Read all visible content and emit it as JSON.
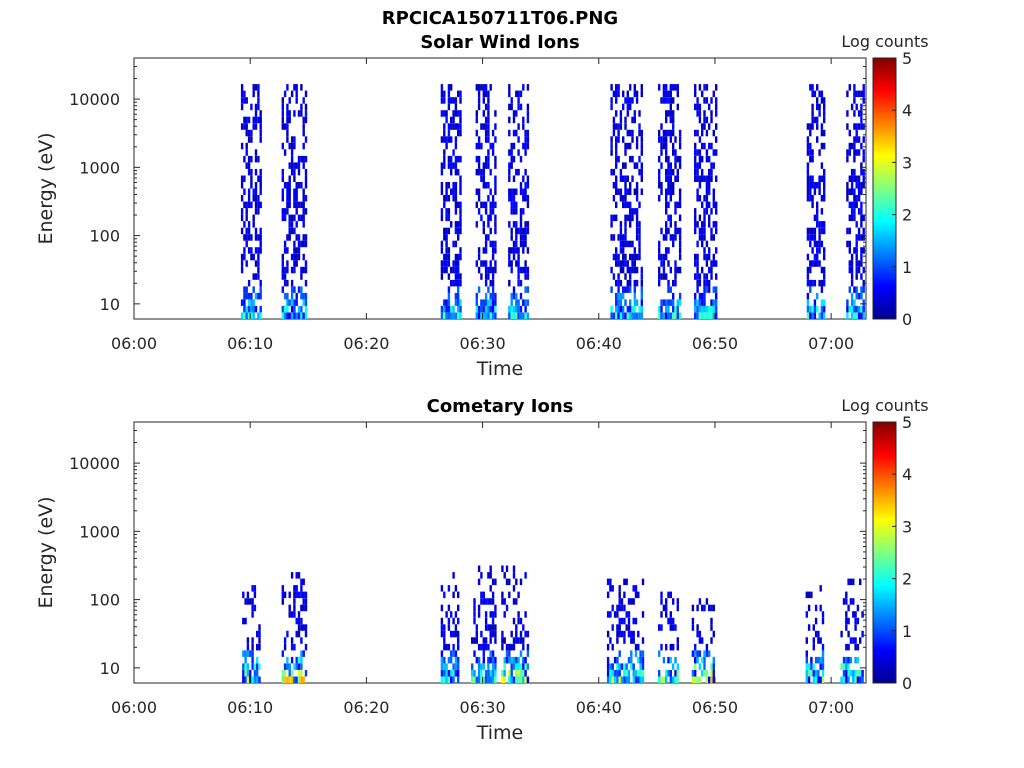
{
  "figure_title": "RPCICA150711T06.PNG",
  "colormap": [
    "#00008f",
    "#0000ff",
    "#0080ff",
    "#00ffff",
    "#80ff80",
    "#ffff00",
    "#ff8000",
    "#ff0000",
    "#800000"
  ],
  "chart_data": [
    {
      "type": "heatmap",
      "title": "Solar Wind Ions",
      "xlabel": "Time",
      "ylabel": "Energy (eV)",
      "x_scale": "time",
      "x_ticks": [
        "06:00",
        "06:10",
        "06:20",
        "06:30",
        "06:40",
        "06:50",
        "07:00"
      ],
      "x_tick_minutes": [
        0,
        10,
        20,
        30,
        40,
        50,
        60
      ],
      "xlim_minutes": [
        0,
        63
      ],
      "y_scale": "log",
      "y_ticks": [
        "10",
        "100",
        "1000",
        "10000"
      ],
      "y_tick_values": [
        10,
        100,
        1000,
        10000
      ],
      "ylim": [
        6,
        40000
      ],
      "colorbar": {
        "label": "Log counts",
        "ticks": [
          "0",
          "1",
          "2",
          "3",
          "4",
          "5"
        ],
        "range": [
          0,
          5
        ]
      },
      "grid": false,
      "bursts": [
        {
          "start_min": 9.2,
          "end_min": 10.8,
          "emax_eV": 15000,
          "peak_log_counts": 1.9
        },
        {
          "start_min": 12.7,
          "end_min": 14.8,
          "emax_eV": 15000,
          "peak_log_counts": 1.9
        },
        {
          "start_min": 26.4,
          "end_min": 28.0,
          "emax_eV": 15000,
          "peak_log_counts": 1.9
        },
        {
          "start_min": 29.4,
          "end_min": 31.0,
          "emax_eV": 15000,
          "peak_log_counts": 1.9
        },
        {
          "start_min": 32.2,
          "end_min": 34.0,
          "emax_eV": 15000,
          "peak_log_counts": 1.9
        },
        {
          "start_min": 41.0,
          "end_min": 43.8,
          "emax_eV": 15000,
          "peak_log_counts": 1.9
        },
        {
          "start_min": 45.1,
          "end_min": 47.0,
          "emax_eV": 15000,
          "peak_log_counts": 1.9
        },
        {
          "start_min": 48.2,
          "end_min": 50.2,
          "emax_eV": 15000,
          "peak_log_counts": 1.9
        },
        {
          "start_min": 57.9,
          "end_min": 59.4,
          "emax_eV": 15000,
          "peak_log_counts": 1.9
        },
        {
          "start_min": 61.3,
          "end_min": 62.8,
          "emax_eV": 15000,
          "peak_log_counts": 1.9
        }
      ]
    },
    {
      "type": "heatmap",
      "title": "Cometary Ions",
      "xlabel": "Time",
      "ylabel": "Energy (eV)",
      "x_scale": "time",
      "x_ticks": [
        "06:00",
        "06:10",
        "06:20",
        "06:30",
        "06:40",
        "06:50",
        "07:00"
      ],
      "x_tick_minutes": [
        0,
        10,
        20,
        30,
        40,
        50,
        60
      ],
      "xlim_minutes": [
        0,
        63
      ],
      "y_scale": "log",
      "y_ticks": [
        "10",
        "100",
        "1000",
        "10000"
      ],
      "y_tick_values": [
        10,
        100,
        1000,
        10000
      ],
      "ylim": [
        6,
        40000
      ],
      "colorbar": {
        "label": "Log counts",
        "ticks": [
          "0",
          "1",
          "2",
          "3",
          "4",
          "5"
        ],
        "range": [
          0,
          5
        ]
      },
      "grid": false,
      "bursts": [
        {
          "start_min": 9.3,
          "end_min": 10.8,
          "emax_eV": 200,
          "peak_log_counts": 2.6
        },
        {
          "start_min": 12.7,
          "end_min": 14.8,
          "emax_eV": 250,
          "peak_log_counts": 3.2
        },
        {
          "start_min": 26.4,
          "end_min": 27.8,
          "emax_eV": 300,
          "peak_log_counts": 1.9
        },
        {
          "start_min": 29.0,
          "end_min": 31.0,
          "emax_eV": 300,
          "peak_log_counts": 2.2
        },
        {
          "start_min": 31.6,
          "end_min": 34.0,
          "emax_eV": 300,
          "peak_log_counts": 3.0
        },
        {
          "start_min": 40.7,
          "end_min": 43.8,
          "emax_eV": 200,
          "peak_log_counts": 2.7
        },
        {
          "start_min": 45.1,
          "end_min": 46.8,
          "emax_eV": 150,
          "peak_log_counts": 2.4
        },
        {
          "start_min": 48.0,
          "end_min": 50.0,
          "emax_eV": 100,
          "peak_log_counts": 3.0
        },
        {
          "start_min": 57.8,
          "end_min": 59.4,
          "emax_eV": 150,
          "peak_log_counts": 2.6
        },
        {
          "start_min": 60.8,
          "end_min": 62.8,
          "emax_eV": 170,
          "peak_log_counts": 2.6
        }
      ]
    }
  ]
}
